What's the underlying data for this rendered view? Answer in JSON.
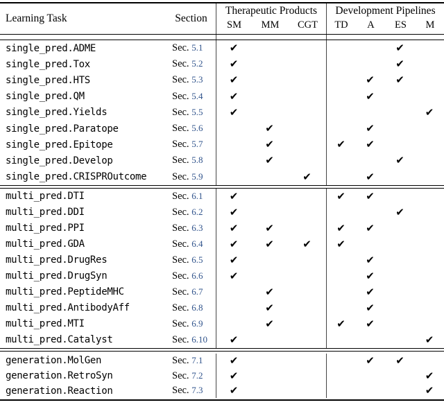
{
  "header": {
    "learning_task": "Learning Task",
    "section": "Section",
    "therapeutic_products": "Therapeutic Products",
    "development_pipelines": "Development Pipelines",
    "product_columns": [
      "SM",
      "MM",
      "CGT"
    ],
    "pipeline_columns": [
      "TD",
      "A",
      "ES",
      "M"
    ]
  },
  "columns_order": [
    "SM",
    "MM",
    "CGT",
    "TD",
    "A",
    "ES",
    "M"
  ],
  "check_glyph": "✔",
  "section_prefix": "Sec.",
  "colors": {
    "section_link": "#31548c",
    "rule": "#000000",
    "divider": "#444444",
    "check": "#000000"
  },
  "blocks": [
    {
      "name": "single_pred",
      "rows": [
        {
          "task": "single_pred.ADME",
          "section": "5.1",
          "checks": [
            "SM",
            "ES"
          ]
        },
        {
          "task": "single_pred.Tox",
          "section": "5.2",
          "checks": [
            "SM",
            "ES"
          ]
        },
        {
          "task": "single_pred.HTS",
          "section": "5.3",
          "checks": [
            "SM",
            "A",
            "ES"
          ]
        },
        {
          "task": "single_pred.QM",
          "section": "5.4",
          "checks": [
            "SM",
            "A"
          ]
        },
        {
          "task": "single_pred.Yields",
          "section": "5.5",
          "checks": [
            "SM",
            "M"
          ]
        },
        {
          "task": "single_pred.Paratope",
          "section": "5.6",
          "checks": [
            "MM",
            "A"
          ]
        },
        {
          "task": "single_pred.Epitope",
          "section": "5.7",
          "checks": [
            "MM",
            "TD",
            "A"
          ]
        },
        {
          "task": "single_pred.Develop",
          "section": "5.8",
          "checks": [
            "MM",
            "ES"
          ]
        },
        {
          "task": "single_pred.CRISPROutcome",
          "section": "5.9",
          "checks": [
            "CGT",
            "A"
          ]
        }
      ]
    },
    {
      "name": "multi_pred",
      "rows": [
        {
          "task": "multi_pred.DTI",
          "section": "6.1",
          "checks": [
            "SM",
            "TD",
            "A"
          ]
        },
        {
          "task": "multi_pred.DDI",
          "section": "6.2",
          "checks": [
            "SM",
            "ES"
          ]
        },
        {
          "task": "multi_pred.PPI",
          "section": "6.3",
          "checks": [
            "SM",
            "MM",
            "TD",
            "A"
          ]
        },
        {
          "task": "multi_pred.GDA",
          "section": "6.4",
          "checks": [
            "SM",
            "MM",
            "CGT",
            "TD"
          ]
        },
        {
          "task": "multi_pred.DrugRes",
          "section": "6.5",
          "checks": [
            "SM",
            "A"
          ]
        },
        {
          "task": "multi_pred.DrugSyn",
          "section": "6.6",
          "checks": [
            "SM",
            "A"
          ]
        },
        {
          "task": "multi_pred.PeptideMHC",
          "section": "6.7",
          "checks": [
            "MM",
            "A"
          ]
        },
        {
          "task": "multi_pred.AntibodyAff",
          "section": "6.8",
          "checks": [
            "MM",
            "A"
          ]
        },
        {
          "task": "multi_pred.MTI",
          "section": "6.9",
          "checks": [
            "MM",
            "TD",
            "A"
          ]
        },
        {
          "task": "multi_pred.Catalyst",
          "section": "6.10",
          "checks": [
            "SM",
            "M"
          ]
        }
      ]
    },
    {
      "name": "generation",
      "rows": [
        {
          "task": "generation.MolGen",
          "section": "7.1",
          "checks": [
            "SM",
            "A",
            "ES"
          ]
        },
        {
          "task": "generation.RetroSyn",
          "section": "7.2",
          "checks": [
            "SM",
            "M"
          ]
        },
        {
          "task": "generation.Reaction",
          "section": "7.3",
          "checks": [
            "SM",
            "M"
          ]
        }
      ]
    }
  ]
}
